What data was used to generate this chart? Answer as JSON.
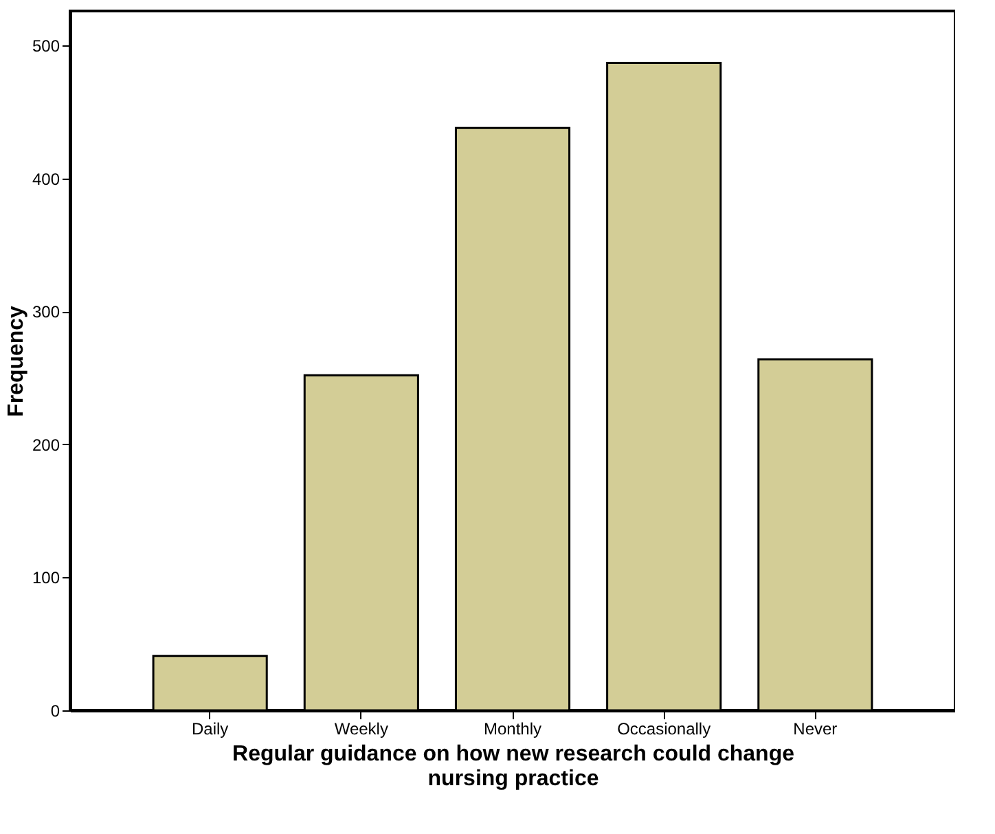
{
  "chart_data": {
    "type": "bar",
    "xlabel": "Regular guidance on how new research could change nursing practice",
    "ylabel": "Frequency",
    "categories": [
      "Daily",
      "Weekly",
      "Monthly",
      "Occasionally",
      "Never"
    ],
    "values": [
      41,
      252,
      438,
      487,
      264
    ],
    "color": "#d3cd96",
    "ylim": [
      0,
      526
    ],
    "yticks": [
      0,
      100,
      200,
      300,
      400,
      500
    ],
    "grid": false
  }
}
